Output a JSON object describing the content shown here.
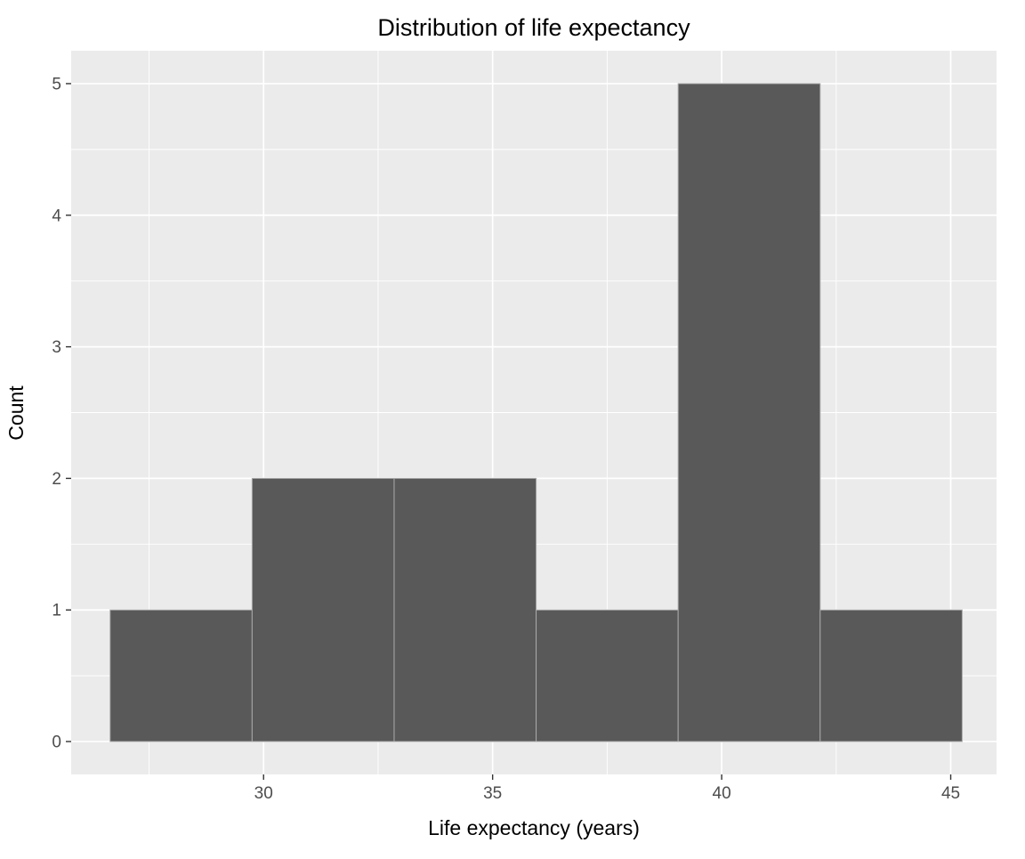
{
  "chart_data": {
    "type": "bar",
    "subtype": "histogram",
    "title": "Distribution of life expectancy",
    "xlabel": "Life expectancy (years)",
    "ylabel": "Count",
    "bin_edges": [
      26.65,
      29.75,
      32.85,
      35.95,
      39.05,
      42.15,
      45.25
    ],
    "counts": [
      1,
      2,
      2,
      1,
      5,
      1
    ],
    "x_ticks": [
      30,
      35,
      40,
      45
    ],
    "y_ticks": [
      0,
      1,
      2,
      3,
      4,
      5
    ],
    "x_minor_ticks": [
      27.5,
      32.5,
      37.5,
      42.5
    ],
    "y_minor_ticks": [
      0.5,
      1.5,
      2.5,
      3.5,
      4.5
    ],
    "xlim": [
      25.8,
      46.0
    ],
    "ylim": [
      -0.25,
      5.25
    ],
    "grid": true,
    "legend": "none",
    "style": "ggplot2",
    "colors": {
      "background": "#FFFFFF",
      "panel_background": "#EBEBEB",
      "grid_major": "#FFFFFF",
      "grid_minor": "#FFFFFF",
      "bar_fill": "#595959",
      "bar_stroke": "#A9A9A9",
      "tick_mark": "#333333",
      "tick_label": "#4D4D4D",
      "title_color": "#000000",
      "axis_title_color": "#000000"
    }
  }
}
